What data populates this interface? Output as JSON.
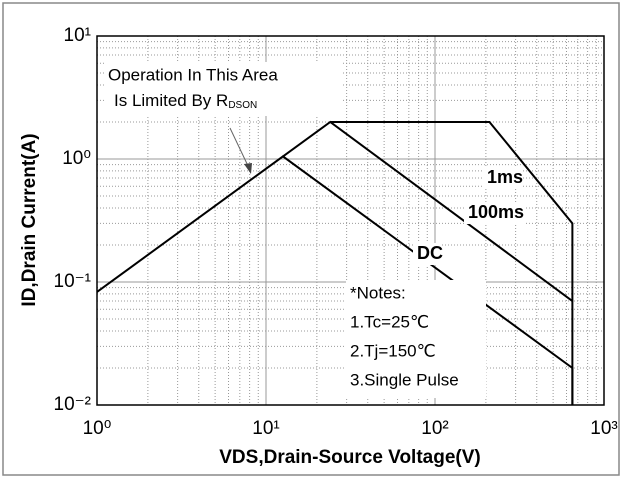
{
  "chart_data": {
    "type": "line",
    "xlabel": "VDS,Drain-Source Voltage(V)",
    "ylabel": "ID,Drain Current(A)",
    "log_x": true,
    "log_y": true,
    "grid": true,
    "xlim": [
      1,
      1000
    ],
    "ylim": [
      0.01,
      10
    ],
    "xticks": [
      {
        "value": 1,
        "label": "10⁰"
      },
      {
        "value": 10,
        "label": "10¹"
      },
      {
        "value": 100,
        "label": "10²"
      },
      {
        "value": 1000,
        "label": "10³"
      }
    ],
    "yticks": [
      {
        "value": 0.01,
        "label": "10⁻²"
      },
      {
        "value": 0.1,
        "label": "10⁻¹"
      },
      {
        "value": 1,
        "label": "10⁰"
      },
      {
        "value": 10,
        "label": "10¹"
      }
    ],
    "series": [
      {
        "name": "DC",
        "color": "#000000",
        "x": [
          1,
          12.6,
          650,
          650
        ],
        "values": [
          0.083,
          1.05,
          0.02,
          0.01
        ]
      },
      {
        "name": "100ms",
        "color": "#000000",
        "x": [
          12.6,
          24,
          650
        ],
        "values": [
          1.05,
          2,
          0.07
        ]
      },
      {
        "name": "1ms",
        "color": "#000000",
        "x": [
          24,
          210,
          650,
          650
        ],
        "values": [
          2,
          2,
          0.3,
          0.01
        ]
      }
    ],
    "annotation": {
      "line1": "Operation In This Area",
      "line2": "Is Limited By R",
      "subscript": "DSON"
    },
    "notes": [
      "*Notes:",
      "1.Tc=25℃",
      "2.Tj=150℃",
      "3.Single Pulse"
    ]
  }
}
